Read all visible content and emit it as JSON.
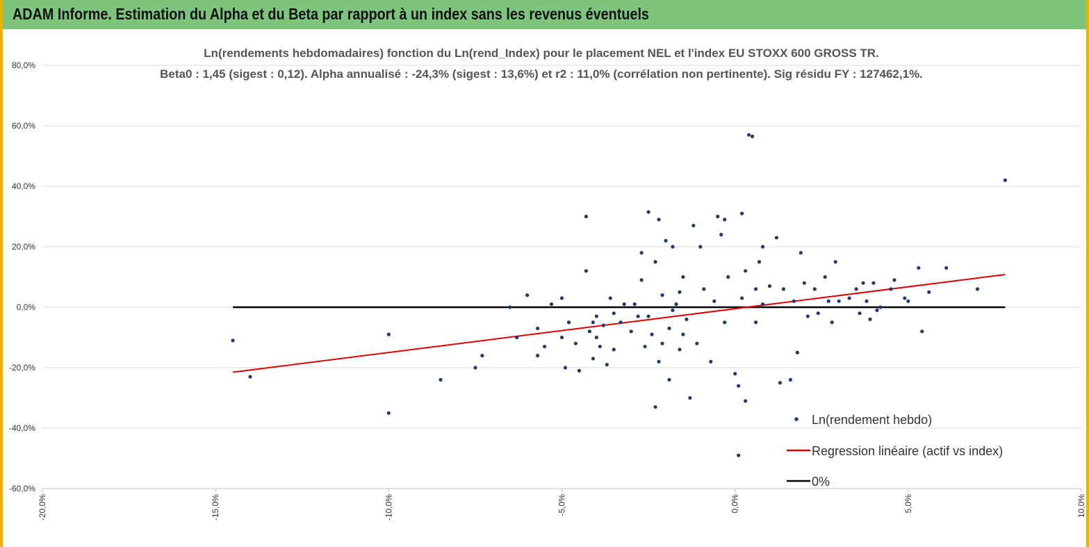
{
  "header": {
    "title": "ADAM Informe. Estimation du Alpha et du Beta par rapport à un index sans les revenus éventuels"
  },
  "colors": {
    "banner": "#7dc57d",
    "banner_border": "#e8b400",
    "points": "#1f3a6b",
    "regression": "#e00000",
    "zero_line": "#000000",
    "grid": "#d9d9d9"
  },
  "chart_data": {
    "type": "scatter",
    "title": "Ln(rendements hebdomadaires) fonction du Ln(rend_Index) pour le placement NEL et l'index EU STOXX 600 GROSS TR.",
    "subtitle": "Beta0 : 1,45 (sigest : 0,12). Alpha annualisé : -24,3% (sigest : 13,6%) et r2 : 11,0% (corrélation non pertinente). Sig résidu FY : 127462,1%.",
    "xlim": [
      -0.2,
      0.1
    ],
    "ylim": [
      -0.6,
      0.8
    ],
    "x_ticks": [
      -0.2,
      -0.15,
      -0.1,
      -0.05,
      0.0,
      0.05,
      0.1
    ],
    "x_tick_labels": [
      "-20,0%",
      "-15,0%",
      "-10,0%",
      "-5,0%",
      "0,0%",
      "5,0%",
      "10,0%"
    ],
    "y_ticks": [
      -0.6,
      -0.4,
      -0.2,
      0.0,
      0.2,
      0.4,
      0.6,
      0.8
    ],
    "y_tick_labels": [
      "-60,0%",
      "-40,0%",
      "-20,0%",
      "0,0%",
      "20,0%",
      "40,0%",
      "60,0%",
      "80,0%"
    ],
    "grid": "horizontal",
    "legend_position": "bottom-right",
    "series": [
      {
        "name": "Ln(rendement hebdo)",
        "kind": "scatter",
        "x": [
          -0.145,
          -0.14,
          -0.1,
          -0.1,
          -0.085,
          -0.075,
          -0.073,
          -0.065,
          -0.063,
          -0.06,
          -0.057,
          -0.057,
          -0.055,
          -0.053,
          -0.05,
          -0.05,
          -0.049,
          -0.048,
          -0.046,
          -0.045,
          -0.043,
          -0.043,
          -0.042,
          -0.041,
          -0.041,
          -0.04,
          -0.04,
          -0.039,
          -0.038,
          -0.037,
          -0.036,
          -0.035,
          -0.035,
          -0.033,
          -0.032,
          -0.03,
          -0.029,
          -0.028,
          -0.027,
          -0.027,
          -0.026,
          -0.025,
          -0.025,
          -0.024,
          -0.023,
          -0.023,
          -0.022,
          -0.022,
          -0.021,
          -0.021,
          -0.02,
          -0.019,
          -0.019,
          -0.018,
          -0.018,
          -0.017,
          -0.016,
          -0.016,
          -0.015,
          -0.015,
          -0.014,
          -0.013,
          -0.012,
          -0.011,
          -0.01,
          -0.009,
          -0.007,
          -0.006,
          -0.005,
          -0.004,
          -0.003,
          -0.003,
          -0.002,
          0.0,
          0.001,
          0.001,
          0.002,
          0.002,
          0.003,
          0.003,
          0.004,
          0.005,
          0.006,
          0.006,
          0.007,
          0.008,
          0.008,
          0.01,
          0.012,
          0.013,
          0.014,
          0.016,
          0.017,
          0.018,
          0.019,
          0.02,
          0.021,
          0.023,
          0.024,
          0.026,
          0.027,
          0.028,
          0.029,
          0.03,
          0.033,
          0.035,
          0.036,
          0.037,
          0.038,
          0.039,
          0.04,
          0.041,
          0.042,
          0.045,
          0.046,
          0.049,
          0.05,
          0.053,
          0.054,
          0.056,
          0.061,
          0.07,
          0.078
        ],
        "y": [
          -0.11,
          -0.23,
          -0.35,
          -0.09,
          -0.24,
          -0.2,
          -0.16,
          0.0,
          -0.1,
          0.04,
          -0.07,
          -0.16,
          -0.13,
          0.01,
          -0.1,
          0.03,
          -0.2,
          -0.05,
          -0.12,
          -0.21,
          0.12,
          0.3,
          -0.08,
          -0.05,
          -0.17,
          -0.1,
          -0.03,
          -0.13,
          -0.06,
          -0.19,
          0.03,
          -0.02,
          -0.14,
          -0.05,
          0.01,
          -0.08,
          0.01,
          -0.03,
          0.18,
          0.09,
          -0.13,
          0.315,
          -0.03,
          -0.09,
          -0.33,
          0.15,
          0.29,
          -0.18,
          0.04,
          -0.12,
          0.22,
          -0.24,
          -0.07,
          0.2,
          -0.01,
          0.01,
          -0.14,
          0.05,
          -0.09,
          0.1,
          -0.04,
          -0.3,
          0.27,
          -0.12,
          0.2,
          0.06,
          -0.18,
          0.02,
          0.3,
          0.24,
          0.29,
          -0.05,
          0.1,
          -0.22,
          -0.49,
          -0.26,
          0.03,
          0.31,
          -0.31,
          0.12,
          0.57,
          0.565,
          0.06,
          -0.05,
          0.15,
          0.01,
          0.2,
          0.07,
          0.23,
          -0.25,
          0.06,
          -0.24,
          0.02,
          -0.15,
          0.18,
          0.08,
          -0.03,
          0.06,
          -0.02,
          0.1,
          0.02,
          -0.05,
          0.15,
          0.02,
          0.03,
          0.06,
          -0.02,
          0.08,
          0.02,
          -0.04,
          0.08,
          -0.01,
          0.0,
          0.06,
          0.09,
          0.03,
          0.02,
          0.13,
          -0.08,
          0.05,
          0.13,
          0.06,
          0.42
        ]
      },
      {
        "name": "Regression linéaire (actif vs index)",
        "kind": "line",
        "x": [
          -0.145,
          0.078
        ],
        "y": [
          -0.215,
          0.108
        ]
      },
      {
        "name": "0%",
        "kind": "line",
        "x": [
          -0.145,
          0.078
        ],
        "y": [
          0.0,
          0.0
        ]
      }
    ]
  }
}
